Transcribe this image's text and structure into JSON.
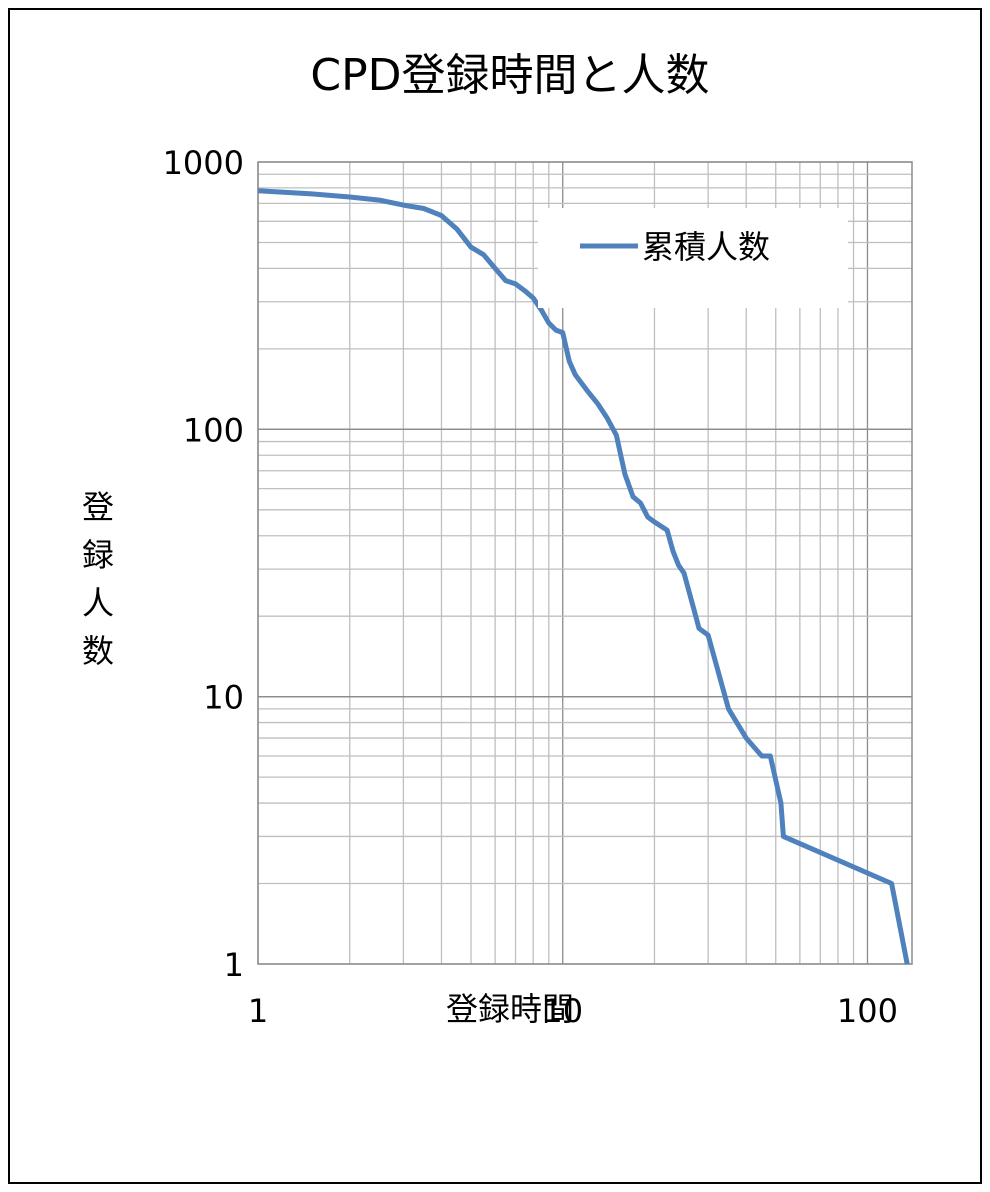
{
  "chart_data": {
    "type": "line",
    "title": "CPD登録時間と人数",
    "xlabel": "登録時間",
    "ylabel": "登録人数",
    "x_scale": "log",
    "y_scale": "log",
    "xlim": [
      1,
      140
    ],
    "ylim": [
      1,
      1000
    ],
    "x_ticks": [
      "1",
      "10",
      "100"
    ],
    "y_ticks": [
      "1",
      "10",
      "100",
      "1000"
    ],
    "grid": true,
    "legend": "top-right",
    "colors": {
      "series": "#4f81bd",
      "grid": "#bfbfbf",
      "major_grid": "#8c8c8c"
    },
    "series": [
      {
        "name": "累積人数",
        "x": [
          1,
          1.5,
          2,
          2.5,
          3,
          3.5,
          4,
          4.5,
          5,
          5.5,
          6,
          6.5,
          7,
          7.5,
          8,
          8.5,
          9,
          9.5,
          10,
          10.5,
          11,
          12,
          13,
          14,
          15,
          16,
          17,
          18,
          19,
          20,
          22,
          23,
          24,
          25,
          27,
          28,
          30,
          35,
          40,
          45,
          48,
          52,
          53,
          120,
          135
        ],
        "y": [
          780,
          760,
          740,
          720,
          690,
          670,
          630,
          560,
          480,
          450,
          400,
          360,
          350,
          330,
          310,
          280,
          250,
          235,
          230,
          180,
          160,
          140,
          125,
          110,
          95,
          68,
          56,
          53,
          47,
          45,
          42,
          35,
          31,
          29,
          21,
          18,
          17,
          9,
          7,
          6,
          6,
          4,
          3,
          2,
          1
        ]
      }
    ]
  }
}
